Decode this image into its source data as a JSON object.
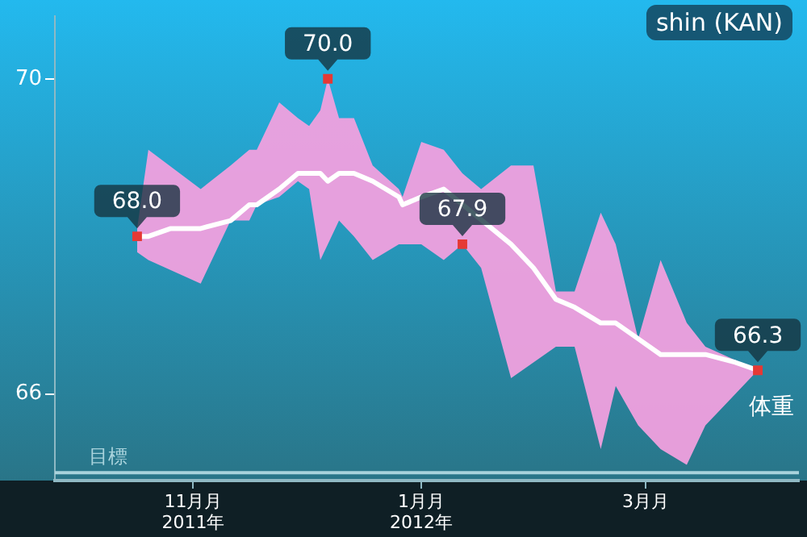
{
  "chart_data": {
    "type": "line",
    "title": "shin (KAN)",
    "xlim": [
      "2011-09-25",
      "2012-04-11"
    ],
    "xticks": [
      {
        "value": "2011-11-01",
        "label": "11月月\n2011年"
      },
      {
        "value": "2012-01-01",
        "label": "1月月\n2012年"
      },
      {
        "value": "2012-03-01",
        "label": "3月月"
      }
    ],
    "ylim": [
      64.9,
      70.8
    ],
    "yticks": [
      66,
      70
    ],
    "grid": false,
    "legend": false,
    "ref_lines": [
      {
        "axis": "y",
        "value": 65,
        "label": "目標",
        "color": "#a9d3dc"
      }
    ],
    "series": [
      {
        "name": "体重",
        "color": "#ffffff",
        "marker": "none",
        "x": [
          "2011-10-17",
          "2011-10-20",
          "2011-10-26",
          "2011-11-03",
          "2011-11-11",
          "2011-11-16",
          "2011-11-18",
          "2011-11-24",
          "2011-11-29",
          "2011-12-02",
          "2011-12-05",
          "2011-12-07",
          "2011-12-10",
          "2011-12-14",
          "2011-12-19",
          "2011-12-26",
          "2011-12-27",
          "2012-01-01",
          "2012-01-07",
          "2012-01-12",
          "2012-01-17",
          "2012-01-25",
          "2012-01-31",
          "2012-02-06",
          "2012-02-11",
          "2012-02-18",
          "2012-02-22",
          "2012-02-28",
          "2012-03-05",
          "2012-03-12",
          "2012-03-17",
          "2012-03-25",
          "2012-03-31"
        ],
        "values": [
          68.0,
          68.0,
          68.1,
          68.1,
          68.2,
          68.4,
          68.4,
          68.6,
          68.8,
          68.8,
          68.8,
          68.7,
          68.8,
          68.8,
          68.7,
          68.5,
          68.4,
          68.5,
          68.6,
          null,
          null,
          67.9,
          67.6,
          67.2,
          67.1,
          66.9,
          66.9,
          66.7,
          66.5,
          66.5,
          66.5,
          66.4,
          66.3
        ],
        "upper": [
          68.1,
          69.1,
          null,
          68.6,
          68.9,
          69.1,
          69.1,
          69.7,
          69.5,
          69.4,
          69.6,
          70.0,
          69.5,
          69.5,
          68.9,
          68.6,
          68.5,
          69.2,
          69.1,
          68.8,
          68.6,
          68.9,
          68.9,
          67.3,
          67.3,
          68.3,
          67.9,
          66.7,
          67.7,
          66.9,
          66.6,
          null,
          66.3
        ],
        "lower": [
          67.8,
          67.7,
          null,
          67.4,
          68.2,
          68.2,
          68.4,
          68.5,
          68.7,
          68.6,
          67.7,
          67.9,
          68.2,
          68.0,
          67.7,
          67.9,
          67.9,
          67.9,
          67.7,
          67.9,
          67.6,
          66.2,
          66.4,
          66.6,
          66.6,
          65.3,
          66.1,
          65.6,
          65.3,
          65.1,
          65.6,
          null,
          66.3
        ]
      },
      {
        "type": "scatter",
        "color": "#e53935",
        "marker": "square",
        "x": [
          "2011-10-17",
          "2011-12-07",
          "2012-01-12",
          "2012-03-31"
        ],
        "values": [
          68.0,
          70.0,
          67.9,
          66.3
        ],
        "value_labels": [
          "68.0",
          "70.0",
          "67.9",
          "66.3"
        ]
      }
    ]
  }
}
